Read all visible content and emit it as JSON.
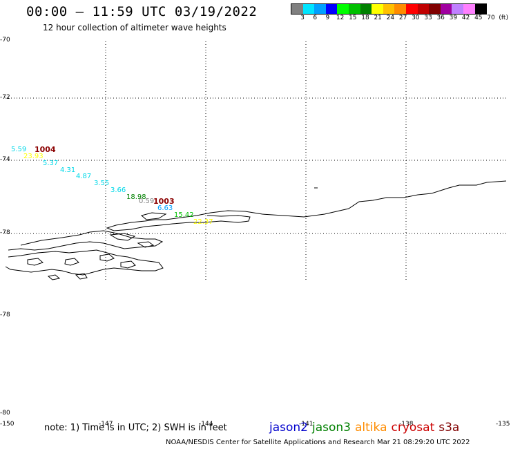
{
  "header": {
    "title": "00:00 – 11:59 UTC 03/19/2022",
    "subtitle": "12 hour collection of altimeter wave heights"
  },
  "colorbar": {
    "colors": [
      "#808080",
      "#00e5ff",
      "#00a0ff",
      "#0000ff",
      "#00ff00",
      "#00c000",
      "#008000",
      "#ffff00",
      "#ffc000",
      "#ff8c00",
      "#ff0000",
      "#c00000",
      "#800000",
      "#a000a0",
      "#c080ff",
      "#ff80ff",
      "#000000"
    ],
    "labels": [
      "3",
      "6",
      "9",
      "12",
      "15",
      "18",
      "21",
      "24",
      "27",
      "30",
      "33",
      "36",
      "39",
      "42",
      "45",
      "70",
      "(ft)"
    ]
  },
  "axes": {
    "lat_labels": [
      "-70",
      "-72",
      "-74",
      "-78",
      "-78",
      "-80"
    ],
    "lon_labels": [
      "-150",
      "-147",
      "-144",
      "-141",
      "-138",
      "-135"
    ]
  },
  "observations": [
    {
      "text": "5.59",
      "color": "#00d8e8"
    },
    {
      "text": "23.93",
      "color": "#ffff00"
    },
    {
      "text": "5.37",
      "color": "#00d8e8"
    },
    {
      "text": "4.31",
      "color": "#00d8e8"
    },
    {
      "text": "4.87",
      "color": "#00d8e8"
    },
    {
      "text": "3.55",
      "color": "#00d8e8"
    },
    {
      "text": "3.66",
      "color": "#00d8e8"
    },
    {
      "text": "18.98",
      "color": "#008000"
    },
    {
      "text": "0.59",
      "color": "#808080"
    },
    {
      "text": "6.63",
      "color": "#00a0ff"
    },
    {
      "text": "15.42",
      "color": "#00c000"
    },
    {
      "text": "22.37",
      "color": "#ffff00"
    }
  ],
  "pressure_labels": [
    "1004",
    "1003"
  ],
  "note": "note: 1) Time is in UTC; 2) SWH is in feet",
  "legend": [
    {
      "name": "jason2",
      "color": "#0000cc"
    },
    {
      "name": "jason3",
      "color": "#008000"
    },
    {
      "name": "altika",
      "color": "#ff8c00"
    },
    {
      "name": "cryosat",
      "color": "#cc0000"
    },
    {
      "name": "s3a",
      "color": "#800000"
    }
  ],
  "footer": "NOAA/NESDIS Center for Satellite Applications and Research    Mar 21 08:29:20 UTC 2022"
}
